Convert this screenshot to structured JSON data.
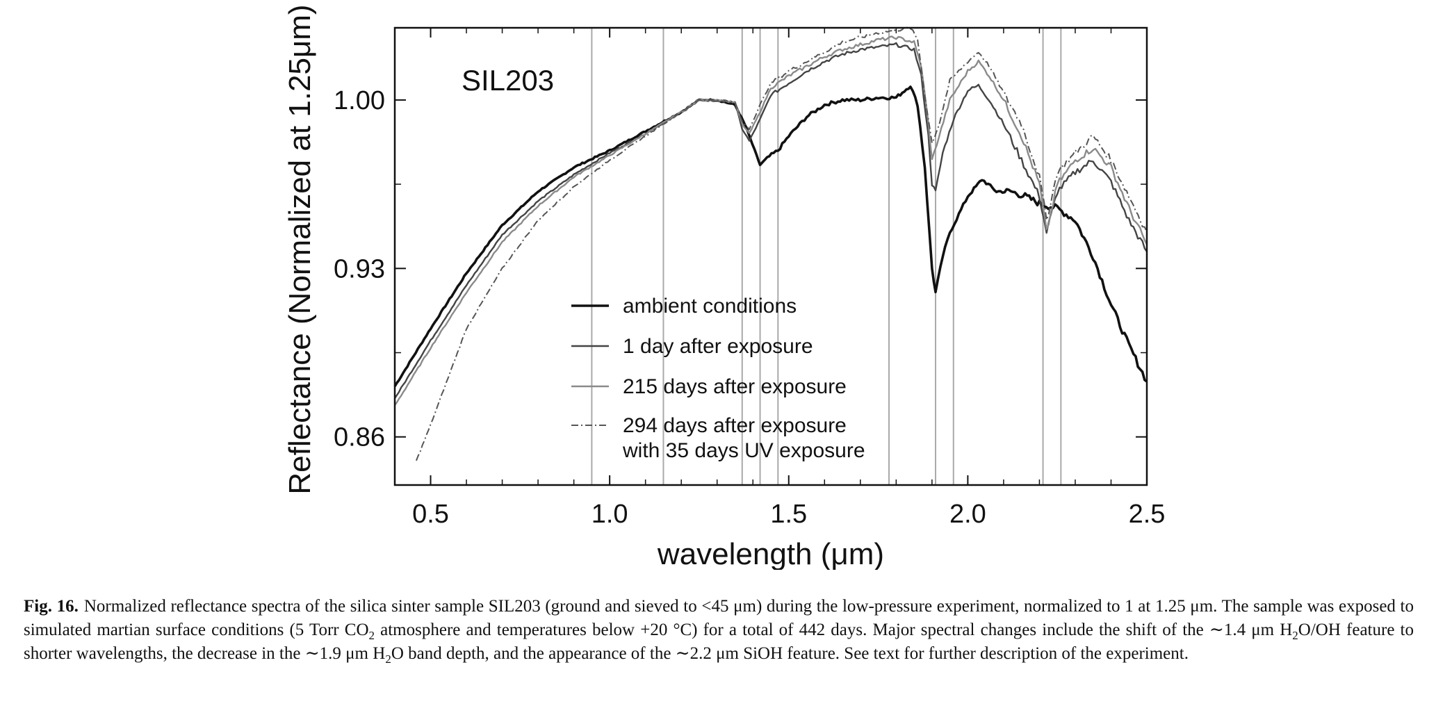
{
  "chart_data": {
    "type": "line",
    "sample_label": "SIL203",
    "xlabel": "wavelength (μm)",
    "ylabel": "Reflectance (Normalized at 1.25μm)",
    "xlim": [
      0.4,
      2.5
    ],
    "ylim": [
      0.84,
      1.03
    ],
    "xticks": [
      0.5,
      1.0,
      1.5,
      2.0,
      2.5
    ],
    "xtick_labels": [
      "0.5",
      "1.0",
      "1.5",
      "2.0",
      "2.5"
    ],
    "yticks": [
      0.86,
      0.93,
      1.0
    ],
    "ytick_labels": [
      "0.86",
      "0.93",
      "1.00"
    ],
    "grid": false,
    "legend_position": "lower-center",
    "reference_lines": [
      0.95,
      1.15,
      1.37,
      1.42,
      1.47,
      1.78,
      1.91,
      1.96,
      2.21,
      2.26
    ],
    "series": [
      {
        "name": "ambient conditions",
        "legend_label": [
          "ambient conditions"
        ],
        "color": "#111111",
        "style": "solid-thick",
        "x": [
          0.4,
          0.5,
          0.6,
          0.7,
          0.8,
          0.9,
          1.0,
          1.1,
          1.2,
          1.25,
          1.3,
          1.35,
          1.38,
          1.41,
          1.42,
          1.44,
          1.47,
          1.5,
          1.55,
          1.6,
          1.65,
          1.7,
          1.75,
          1.8,
          1.84,
          1.86,
          1.88,
          1.9,
          1.91,
          1.93,
          1.95,
          2.0,
          2.04,
          2.08,
          2.12,
          2.16,
          2.2,
          2.25,
          2.3,
          2.35,
          2.4,
          2.45,
          2.5
        ],
        "y": [
          0.881,
          0.905,
          0.928,
          0.948,
          0.962,
          0.972,
          0.979,
          0.987,
          0.995,
          1.0,
          1.0,
          0.998,
          0.989,
          0.977,
          0.973,
          0.976,
          0.979,
          0.985,
          0.993,
          0.998,
          1.0,
          1.0,
          1.001,
          1.001,
          1.006,
          0.998,
          0.972,
          0.93,
          0.92,
          0.935,
          0.945,
          0.96,
          0.967,
          0.962,
          0.962,
          0.96,
          0.957,
          0.955,
          0.95,
          0.935,
          0.915,
          0.898,
          0.883
        ]
      },
      {
        "name": "1 day after exposure",
        "legend_label": [
          "1 day after exposure"
        ],
        "color": "#444444",
        "style": "solid",
        "x": [
          0.4,
          0.5,
          0.6,
          0.7,
          0.8,
          0.9,
          1.0,
          1.1,
          1.2,
          1.25,
          1.3,
          1.35,
          1.37,
          1.39,
          1.42,
          1.45,
          1.5,
          1.55,
          1.6,
          1.65,
          1.7,
          1.75,
          1.8,
          1.85,
          1.87,
          1.89,
          1.9,
          1.91,
          1.93,
          1.96,
          2.0,
          2.03,
          2.06,
          2.1,
          2.15,
          2.2,
          2.22,
          2.25,
          2.3,
          2.35,
          2.4,
          2.45,
          2.5
        ],
        "y": [
          0.876,
          0.9,
          0.923,
          0.944,
          0.958,
          0.969,
          0.978,
          0.986,
          0.995,
          1.0,
          1.0,
          0.999,
          0.988,
          0.983,
          0.992,
          1.002,
          1.007,
          1.012,
          1.016,
          1.019,
          1.021,
          1.022,
          1.023,
          1.021,
          1.01,
          0.985,
          0.965,
          0.962,
          0.978,
          0.992,
          1.004,
          1.006,
          1.0,
          0.99,
          0.975,
          0.96,
          0.945,
          0.962,
          0.97,
          0.975,
          0.966,
          0.95,
          0.937
        ]
      },
      {
        "name": "215 days after exposure",
        "legend_label": [
          "215 days after exposure"
        ],
        "color": "#8a8a8a",
        "style": "solid",
        "x": [
          0.4,
          0.5,
          0.6,
          0.7,
          0.8,
          0.9,
          1.0,
          1.1,
          1.2,
          1.25,
          1.3,
          1.35,
          1.37,
          1.39,
          1.42,
          1.45,
          1.5,
          1.55,
          1.6,
          1.65,
          1.7,
          1.75,
          1.8,
          1.85,
          1.87,
          1.89,
          1.9,
          1.92,
          1.95,
          2.0,
          2.03,
          2.06,
          2.1,
          2.15,
          2.2,
          2.22,
          2.25,
          2.3,
          2.35,
          2.4,
          2.45,
          2.5
        ],
        "y": [
          0.873,
          0.897,
          0.92,
          0.941,
          0.956,
          0.968,
          0.977,
          0.986,
          0.995,
          1.0,
          1.0,
          0.999,
          0.99,
          0.986,
          0.995,
          1.005,
          1.01,
          1.014,
          1.018,
          1.021,
          1.023,
          1.025,
          1.026,
          1.024,
          1.014,
          0.99,
          0.975,
          0.985,
          1.0,
          1.012,
          1.016,
          1.01,
          1.0,
          0.985,
          0.965,
          0.945,
          0.965,
          0.975,
          0.98,
          0.972,
          0.955,
          0.94
        ]
      },
      {
        "name": "294 days after exposure with 35 days UV exposure",
        "legend_label": [
          "294 days after exposure",
          "with 35 days UV exposure"
        ],
        "color": "#555555",
        "style": "dash-dot",
        "x": [
          0.46,
          0.5,
          0.55,
          0.6,
          0.7,
          0.8,
          0.9,
          1.0,
          1.1,
          1.2,
          1.25,
          1.3,
          1.35,
          1.37,
          1.39,
          1.42,
          1.45,
          1.5,
          1.55,
          1.6,
          1.65,
          1.7,
          1.75,
          1.8,
          1.84,
          1.86,
          1.88,
          1.9,
          1.92,
          1.95,
          2.0,
          2.03,
          2.06,
          2.1,
          2.15,
          2.2,
          2.22,
          2.25,
          2.3,
          2.35,
          2.4,
          2.45,
          2.5
        ],
        "y": [
          0.85,
          0.865,
          0.885,
          0.905,
          0.93,
          0.95,
          0.964,
          0.975,
          0.985,
          0.995,
          1.0,
          1.0,
          0.999,
          0.991,
          0.988,
          0.998,
          1.007,
          1.012,
          1.016,
          1.02,
          1.024,
          1.026,
          1.028,
          1.029,
          1.03,
          1.025,
          1.002,
          0.982,
          0.99,
          1.008,
          1.016,
          1.02,
          1.014,
          1.003,
          0.99,
          0.968,
          0.95,
          0.97,
          0.978,
          0.985,
          0.975,
          0.96,
          0.945
        ]
      }
    ]
  },
  "caption": {
    "fig_label": "Fig. 16.",
    "part1": "Normalized reflectance spectra of the silica sinter sample SIL203 (ground and sieved to <45 μm) during the low-pressure experiment, normalized to 1 at 1.25 μm. The sample was exposed to simulated martian surface conditions (5 Torr CO",
    "sub1": "2",
    "part2": " atmosphere and temperatures below +20 °C) for a total of 442 days. Major spectral changes include the shift of the ∼1.4 μm H",
    "sub2": "2",
    "part3": "O/OH feature to shorter wavelengths, the decrease in the ∼1.9 μm H",
    "sub3": "2",
    "part4": "O band depth, and the appearance of the ∼2.2 μm SiOH feature. See text for further description of the experiment."
  }
}
